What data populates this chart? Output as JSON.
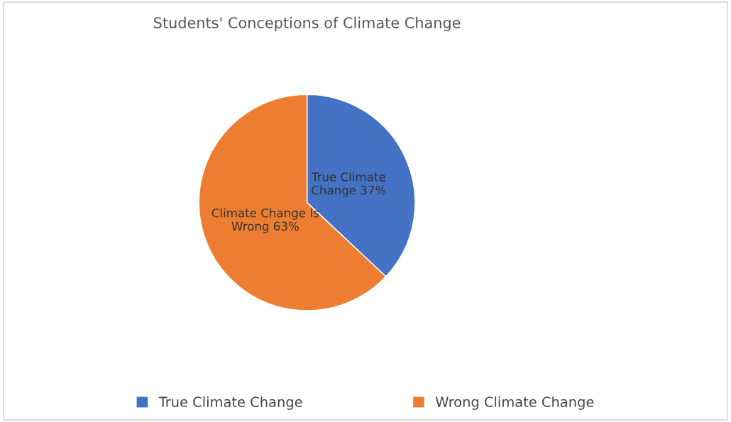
{
  "chart_data": {
    "type": "pie",
    "title": "Students' Conceptions of Climate Change",
    "categories": [
      "True Climate Change",
      "Wrong Climate Change"
    ],
    "values": [
      37,
      63
    ],
    "colors": [
      "#4472c4",
      "#ed7d31"
    ],
    "value_labels": [
      "True Climate\nChange 37%",
      "Climate Change Is\nWrong 63%"
    ],
    "legend": "bottom"
  }
}
